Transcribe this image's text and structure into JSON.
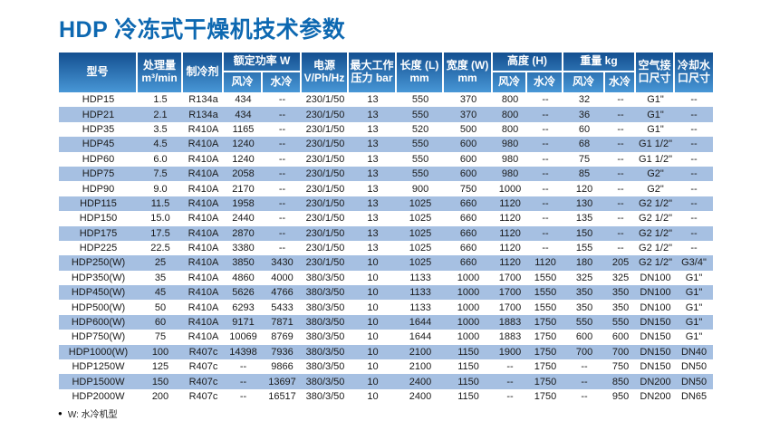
{
  "title": "HDP 冷冻式干燥机技术参数",
  "colors": {
    "title_blue": "#0d68b1",
    "header_gradient_top": "#134f90",
    "header_gradient_bottom": "#4897d6",
    "stripe_row": "#a6c0e2"
  },
  "table": {
    "headers": {
      "model": "型号",
      "capacity": "处理量\nm³/min",
      "refrigerant": "制冷剂",
      "rated_power": "额定功率 W",
      "air_cooled": "风冷",
      "water_cooled": "水冷",
      "power_supply": "电源\nV/Ph/Hz",
      "max_pressure": "最大工作\n压力 bar",
      "length": "长度 (L)\nmm",
      "width": "宽度 (W)\nmm",
      "height": "高度 (H)",
      "weight": "重量 kg",
      "air_port": "空气接\n口尺寸",
      "water_port": "冷却水\n口尺寸"
    },
    "rows": [
      [
        "HDP15",
        "1.5",
        "R134a",
        "434",
        "--",
        "230/1/50",
        "13",
        "550",
        "370",
        "800",
        "--",
        "32",
        "--",
        "G1\"",
        "--"
      ],
      [
        "HDP21",
        "2.1",
        "R134a",
        "434",
        "--",
        "230/1/50",
        "13",
        "550",
        "370",
        "800",
        "--",
        "36",
        "--",
        "G1\"",
        "--"
      ],
      [
        "HDP35",
        "3.5",
        "R410A",
        "1165",
        "--",
        "230/1/50",
        "13",
        "520",
        "500",
        "800",
        "--",
        "60",
        "--",
        "G1\"",
        "--"
      ],
      [
        "HDP45",
        "4.5",
        "R410A",
        "1240",
        "--",
        "230/1/50",
        "13",
        "550",
        "600",
        "980",
        "--",
        "68",
        "--",
        "G1 1/2\"",
        "--"
      ],
      [
        "HDP60",
        "6.0",
        "R410A",
        "1240",
        "--",
        "230/1/50",
        "13",
        "550",
        "600",
        "980",
        "--",
        "75",
        "--",
        "G1 1/2\"",
        "--"
      ],
      [
        "HDP75",
        "7.5",
        "R410A",
        "2058",
        "--",
        "230/1/50",
        "13",
        "550",
        "600",
        "980",
        "--",
        "85",
        "--",
        "G2\"",
        "--"
      ],
      [
        "HDP90",
        "9.0",
        "R410A",
        "2170",
        "--",
        "230/1/50",
        "13",
        "900",
        "750",
        "1000",
        "--",
        "120",
        "--",
        "G2\"",
        "--"
      ],
      [
        "HDP115",
        "11.5",
        "R410A",
        "1958",
        "--",
        "230/1/50",
        "13",
        "1025",
        "660",
        "1120",
        "--",
        "130",
        "--",
        "G2 1/2\"",
        "--"
      ],
      [
        "HDP150",
        "15.0",
        "R410A",
        "2440",
        "--",
        "230/1/50",
        "13",
        "1025",
        "660",
        "1120",
        "--",
        "135",
        "--",
        "G2 1/2\"",
        "--"
      ],
      [
        "HDP175",
        "17.5",
        "R410A",
        "2870",
        "--",
        "230/1/50",
        "13",
        "1025",
        "660",
        "1120",
        "--",
        "150",
        "--",
        "G2 1/2\"",
        "--"
      ],
      [
        "HDP225",
        "22.5",
        "R410A",
        "3380",
        "--",
        "230/1/50",
        "13",
        "1025",
        "660",
        "1120",
        "--",
        "155",
        "--",
        "G2 1/2\"",
        "--"
      ],
      [
        "HDP250(W)",
        "25",
        "R410A",
        "3850",
        "3430",
        "230/1/50",
        "10",
        "1025",
        "660",
        "1120",
        "1120",
        "180",
        "205",
        "G2 1/2\"",
        "G3/4\""
      ],
      [
        "HDP350(W)",
        "35",
        "R410A",
        "4860",
        "4000",
        "380/3/50",
        "10",
        "1133",
        "1000",
        "1700",
        "1550",
        "325",
        "325",
        "DN100",
        "G1\""
      ],
      [
        "HDP450(W)",
        "45",
        "R410A",
        "5626",
        "4766",
        "380/3/50",
        "10",
        "1133",
        "1000",
        "1700",
        "1550",
        "350",
        "350",
        "DN100",
        "G1\""
      ],
      [
        "HDP500(W)",
        "50",
        "R410A",
        "6293",
        "5433",
        "380/3/50",
        "10",
        "1133",
        "1000",
        "1700",
        "1550",
        "350",
        "350",
        "DN100",
        "G1\""
      ],
      [
        "HDP600(W)",
        "60",
        "R410A",
        "9171",
        "7871",
        "380/3/50",
        "10",
        "1644",
        "1000",
        "1883",
        "1750",
        "550",
        "550",
        "DN150",
        "G1\""
      ],
      [
        "HDP750(W)",
        "75",
        "R410A",
        "10069",
        "8769",
        "380/3/50",
        "10",
        "1644",
        "1000",
        "1883",
        "1750",
        "600",
        "600",
        "DN150",
        "G1\""
      ],
      [
        "HDP1000(W)",
        "100",
        "R407c",
        "14398",
        "7936",
        "380/3/50",
        "10",
        "2100",
        "1150",
        "1900",
        "1750",
        "700",
        "700",
        "DN150",
        "DN40"
      ],
      [
        "HDP1250W",
        "125",
        "R407c",
        "--",
        "9866",
        "380/3/50",
        "10",
        "2100",
        "1150",
        "--",
        "1750",
        "--",
        "750",
        "DN150",
        "DN50"
      ],
      [
        "HDP1500W",
        "150",
        "R407c",
        "--",
        "13697",
        "380/3/50",
        "10",
        "2400",
        "1150",
        "--",
        "1750",
        "--",
        "850",
        "DN200",
        "DN50"
      ],
      [
        "HDP2000W",
        "200",
        "R407c",
        "--",
        "16517",
        "380/3/50",
        "10",
        "2400",
        "1150",
        "--",
        "1750",
        "--",
        "950",
        "DN200",
        "DN65"
      ]
    ]
  },
  "footnote": {
    "bullet": "●",
    "text": "W: 水冷机型"
  }
}
